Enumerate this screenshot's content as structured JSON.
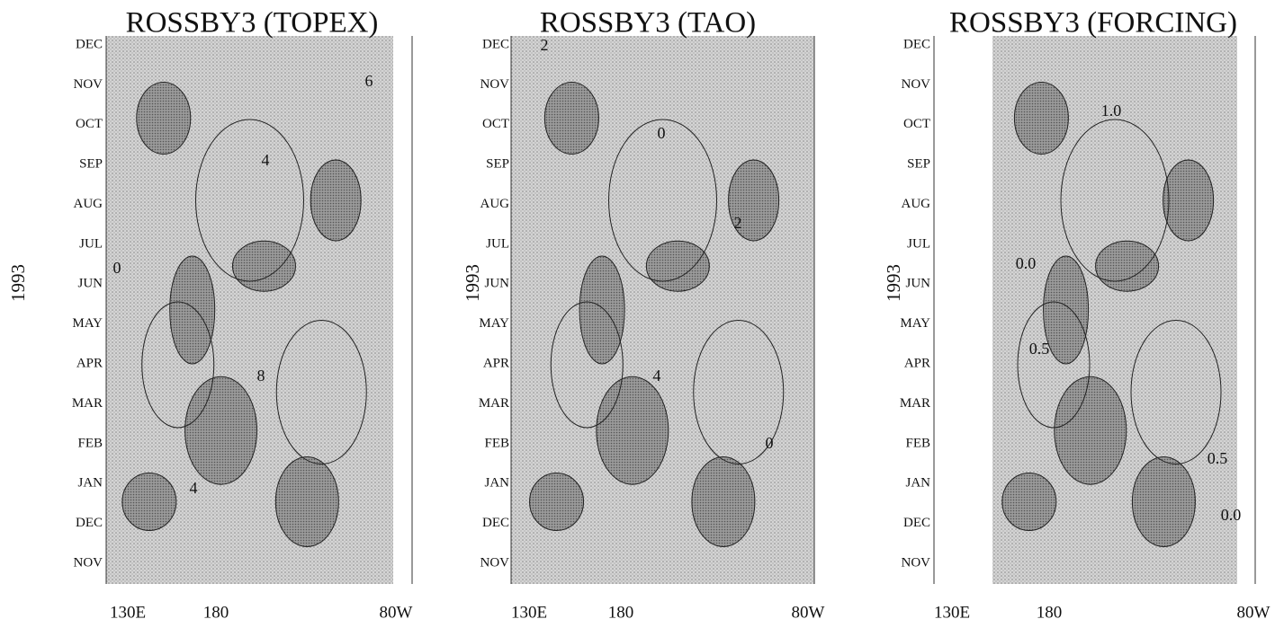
{
  "panels": [
    {
      "title": "ROSSBY3 (TOPEX)",
      "y_label": "1993",
      "months": [
        "DEC",
        "NOV",
        "OCT",
        "SEP",
        "AUG",
        "JUL",
        "JUN",
        "MAY",
        "APR",
        "MAR",
        "FEB",
        "JAN",
        "DEC",
        "NOV"
      ],
      "x_labels": [
        "130E",
        "180",
        "80W"
      ],
      "contour_labels": [
        "6",
        "4",
        "0",
        "8",
        "4"
      ]
    },
    {
      "title": "ROSSBY3 (TAO)",
      "y_label": "1993",
      "months": [
        "DEC",
        "NOV",
        "OCT",
        "SEP",
        "AUG",
        "JUL",
        "JUN",
        "MAY",
        "APR",
        "MAR",
        "FEB",
        "JAN",
        "DEC",
        "NOV"
      ],
      "x_labels": [
        "130E",
        "180",
        "80W"
      ],
      "contour_labels": [
        "2",
        "0",
        "2",
        "4",
        "0"
      ]
    },
    {
      "title": "ROSSBY3 (FORCING)",
      "y_label": "1993",
      "months": [
        "DEC",
        "NOV",
        "OCT",
        "SEP",
        "AUG",
        "JUL",
        "JUN",
        "MAY",
        "APR",
        "MAR",
        "FEB",
        "JAN",
        "DEC",
        "NOV"
      ],
      "x_labels": [
        "130E",
        "180",
        "80W"
      ],
      "contour_labels": [
        "1.0",
        "0.5",
        "0.0",
        "0.5",
        "0.0"
      ]
    }
  ]
}
